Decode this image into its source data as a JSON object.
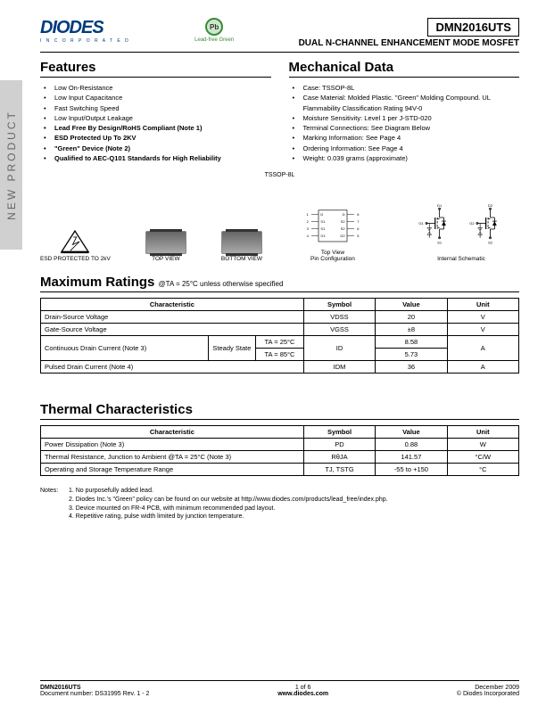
{
  "header": {
    "logo": "DIODES",
    "logo_sub": "I N C O R P O R A T E D",
    "pb_label": "Lead-free Green",
    "pb_symbol": "Pb",
    "part_number": "DMN2016UTS",
    "subtitle": "DUAL N-CHANNEL ENHANCEMENT MODE MOSFET"
  },
  "side_tab": "NEW PRODUCT",
  "features": {
    "title": "Features",
    "items": [
      {
        "text": "Low On-Resistance",
        "bold": false
      },
      {
        "text": "Low Input Capacitance",
        "bold": false
      },
      {
        "text": "Fast Switching Speed",
        "bold": false
      },
      {
        "text": "Low Input/Output Leakage",
        "bold": false
      },
      {
        "text": "Lead Free By Design/RoHS Compliant (Note 1)",
        "bold": true
      },
      {
        "text": "ESD Protected Up To 2KV",
        "bold": true
      },
      {
        "text": "\"Green\" Device (Note 2)",
        "bold": true
      },
      {
        "text": "Qualified to AEC-Q101 Standards for High Reliability",
        "bold": true
      }
    ]
  },
  "mechanical": {
    "title": "Mechanical Data",
    "items": [
      "Case: TSSOP-8L",
      "Case Material: Molded Plastic. \"Green\" Molding Compound. UL Flammability Classification Rating 94V-0",
      "Moisture Sensitivity: Level 1 per J-STD-020",
      "Terminal Connections: See Diagram Below",
      "Marking Information: See Page 4",
      "Ordering Information: See Page 4",
      "Weight: 0.039 grams (approximate)"
    ]
  },
  "diagrams": {
    "tssop_label": "TSSOP-8L",
    "esd": "ESD PROTECTED TO 2kV",
    "top": "TOP VIEW",
    "bottom": "BOTTOM VIEW",
    "pincfg_title": "Top View",
    "pincfg_sub": "Pin Configuration",
    "schem": "Internal Schematic",
    "pins_left": [
      "D",
      "S1",
      "S1",
      "G1"
    ],
    "pins_right": [
      "D",
      "S2",
      "S2",
      "G2"
    ],
    "pin_nums_left": [
      "1",
      "2",
      "3",
      "4"
    ],
    "pin_nums_right": [
      "8",
      "7",
      "6",
      "5"
    ],
    "schem_labels": {
      "g1": "G1",
      "g2": "G2",
      "d1": "D1",
      "d2": "D2",
      "s1": "S1",
      "s2": "S2"
    }
  },
  "max_ratings": {
    "title": "Maximum Ratings",
    "cond": " @TA = 25°C unless otherwise specified",
    "headers": [
      "Characteristic",
      "Symbol",
      "Value",
      "Unit"
    ],
    "rows": [
      {
        "char": "Drain-Source Voltage",
        "sym": "VDSS",
        "val": "20",
        "unit": "V"
      },
      {
        "char": "Gate-Source Voltage",
        "sym": "VGSS",
        "val": "±8",
        "unit": "V"
      },
      {
        "char": "Continuous Drain Current (Note 3)",
        "sub1": "Steady State",
        "sub2a": "TA = 25°C",
        "sub2b": "TA = 85°C",
        "sym": "ID",
        "vala": "8.58",
        "valb": "5.73",
        "unit": "A"
      },
      {
        "char": "Pulsed Drain Current (Note 4)",
        "sym": "IDM",
        "val": "36",
        "unit": "A"
      }
    ]
  },
  "thermal": {
    "title": "Thermal Characteristics",
    "headers": [
      "Characteristic",
      "Symbol",
      "Value",
      "Unit"
    ],
    "rows": [
      [
        "Power Dissipation (Note 3)",
        "PD",
        "0.88",
        "W"
      ],
      [
        "Thermal Resistance, Junction to Ambient @TA = 25°C (Note 3)",
        "RθJA",
        "141.57",
        "°C/W"
      ],
      [
        "Operating and Storage Temperature Range",
        "TJ, TSTG",
        "-55 to +150",
        "°C"
      ]
    ]
  },
  "notes": {
    "label": "Notes:",
    "items": [
      "1. No purposefully added lead.",
      "2. Diodes Inc.'s \"Green\" policy can be found on our website at http://www.diodes.com/products/lead_free/index.php.",
      "3. Device mounted on FR-4 PCB, with minimum recommended pad layout.",
      "4. Repetitive rating, pulse width limited by junction temperature."
    ]
  },
  "footer": {
    "left1": "DMN2016UTS",
    "left2": "Document number: DS31995 Rev. 1 - 2",
    "mid1": "1 of 6",
    "mid2": "www.diodes.com",
    "right1": "December 2009",
    "right2": "© Diodes Incorporated"
  }
}
